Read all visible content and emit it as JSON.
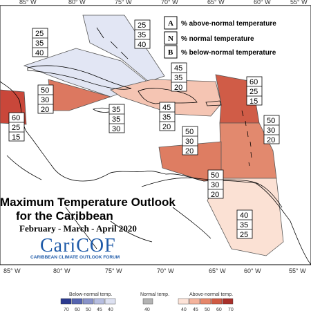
{
  "title": {
    "line1": "Maximum Temperature Outlook",
    "line2": "for the Caribbean",
    "period": "February - March - April 2020"
  },
  "logo": {
    "name": "CariCOF",
    "subtitle": "CARIBBEAN CLIMATE OUTLOOK FORUM"
  },
  "key": {
    "above": {
      "letter": "A",
      "text": "% above-normal temperature"
    },
    "normal": {
      "letter": "N",
      "text": "% normal temperature"
    },
    "below": {
      "letter": "B",
      "text": "% below-normal temperature"
    }
  },
  "axis": {
    "top": [
      "85° W",
      "80° W",
      "75° W",
      "70° W",
      "65° W",
      "60° W",
      "55° W"
    ],
    "bottom": [
      "85° W",
      "80° W",
      "75° W",
      "70° W",
      "65° W",
      "60° W",
      "55° W"
    ]
  },
  "colorbar": {
    "below_label": "Below-normal temp.",
    "normal_label": "Normal temp.",
    "above_label": "Above-normal temp.",
    "below_ticks": [
      "70",
      "60",
      "50",
      "45",
      "40"
    ],
    "normal_ticks": [
      "40"
    ],
    "above_ticks": [
      "40",
      "45",
      "50",
      "60",
      "70"
    ],
    "below_colors": [
      "#2b3a8f",
      "#5564b0",
      "#8993c9",
      "#b7bee0",
      "#dde1f1"
    ],
    "normal_color": "#b3b3b3",
    "above_colors": [
      "#fde3d8",
      "#f4b39c",
      "#e5866a",
      "#cf5a43",
      "#a8302a"
    ]
  },
  "regions": [
    {
      "name": "bahamas-north",
      "values": [
        "25",
        "35",
        "40"
      ]
    },
    {
      "name": "cuba-bahamas",
      "values": [
        "25",
        "35",
        "40"
      ]
    },
    {
      "name": "belize",
      "values": [
        "60",
        "25",
        "15"
      ]
    },
    {
      "name": "cayman-jamaica",
      "values": [
        "50",
        "30",
        "20"
      ]
    },
    {
      "name": "jamaica-south",
      "values": [
        "35",
        "35",
        "30"
      ]
    },
    {
      "name": "hispaniola",
      "values": [
        "45",
        "35",
        "20"
      ]
    },
    {
      "name": "hispaniola-south",
      "values": [
        "45",
        "35",
        "20"
      ]
    },
    {
      "name": "leeward-north",
      "values": [
        "60",
        "25",
        "15"
      ]
    },
    {
      "name": "windward",
      "values": [
        "50",
        "30",
        "20"
      ]
    },
    {
      "name": "abc-islands",
      "values": [
        "50",
        "30",
        "20"
      ]
    },
    {
      "name": "trinidad",
      "values": [
        "50",
        "30",
        "20"
      ]
    },
    {
      "name": "guianas",
      "values": [
        "40",
        "35",
        "25"
      ]
    }
  ]
}
